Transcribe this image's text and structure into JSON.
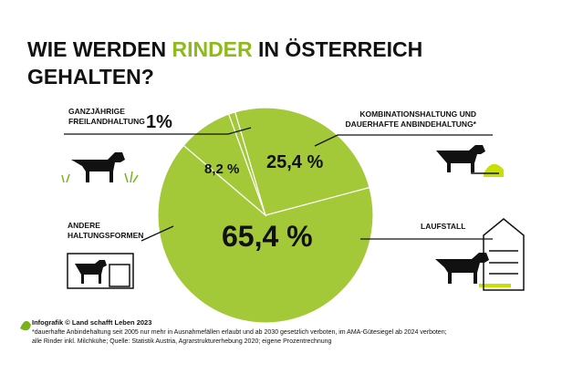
{
  "chart_data": {
    "type": "pie",
    "title": [
      "WIE WERDEN",
      "RINDER",
      "IN ÖSTERREICH",
      "GEHALTEN?"
    ],
    "categories": [
      "GANZJÄHRIGE FREILANDHALTUNG",
      "KOMBINATIONSHALTUNG UND DAUERHAFTE ANBINDEHALTUNG*",
      "LAUFSTALL",
      "ANDERE HALTUNGSFORMEN"
    ],
    "values": [
      1,
      25.4,
      65.4,
      8.2
    ],
    "value_labels": [
      "1%",
      "25,4 %",
      "65,4 %",
      "8,2 %"
    ],
    "color": "#a3c838"
  },
  "footer": {
    "credit": "Infografik © Land schafft Leben 2023",
    "notes": [
      "*dauerhafte Anbindehaltung seit 2005 nur mehr in Ausnahmefällen erlaubt und ab 2030 gesetzlich verboten, im AMA-Gütesiegel ab 2024 verboten;",
      "alle Rinder inkl. Milchkühe; Quelle: Statistik Austria, Agrarstrukturerhebung 2020; eigene Prozentrechnung"
    ]
  }
}
